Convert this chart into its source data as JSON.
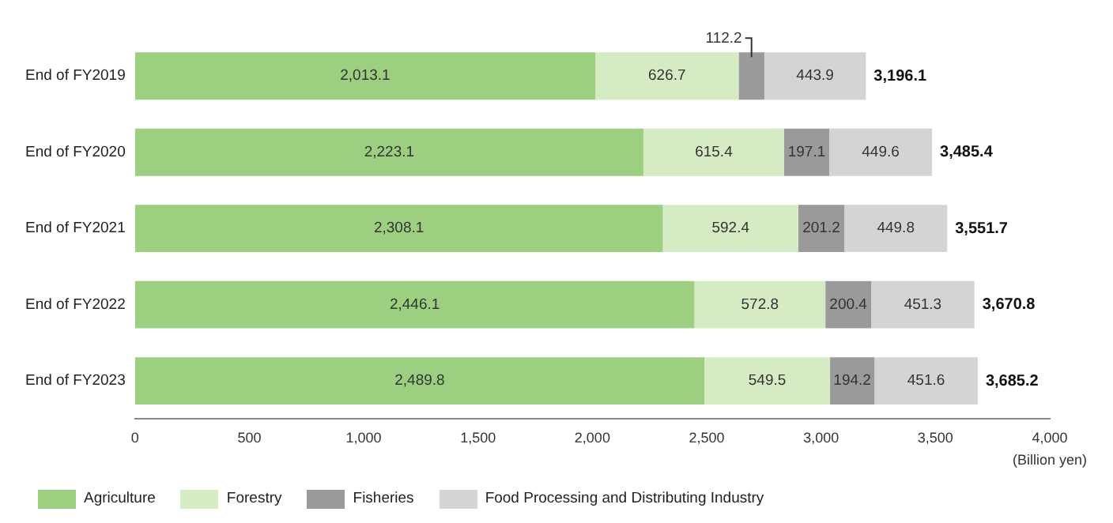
{
  "chart_data": {
    "type": "bar",
    "orientation": "horizontal",
    "stacked": true,
    "categories": [
      "End of FY2019",
      "End of FY2020",
      "End of FY2021",
      "End of FY2022",
      "End of FY2023"
    ],
    "series": [
      {
        "name": "Agriculture",
        "color": "#9dcf80",
        "values": [
          2013.1,
          2223.1,
          2308.1,
          2446.1,
          2489.8
        ],
        "value_labels": [
          "2,013.1",
          "2,223.1",
          "2,308.1",
          "2,446.1",
          "2,489.8"
        ]
      },
      {
        "name": "Forestry",
        "color": "#d5ebc4",
        "values": [
          626.7,
          615.4,
          592.4,
          572.8,
          549.5
        ],
        "value_labels": [
          "626.7",
          "615.4",
          "592.4",
          "572.8",
          "549.5"
        ]
      },
      {
        "name": "Fisheries",
        "color": "#9a9a9a",
        "values": [
          112.2,
          197.1,
          201.2,
          200.4,
          194.2
        ],
        "value_labels": [
          "112.2",
          "197.1",
          "201.2",
          "200.4",
          "194.2"
        ]
      },
      {
        "name": "Food Processing and Distributing Industry",
        "color": "#d4d4d4",
        "values": [
          443.9,
          449.6,
          449.8,
          451.3,
          451.6
        ],
        "value_labels": [
          "443.9",
          "449.6",
          "449.8",
          "451.3",
          "451.6"
        ]
      }
    ],
    "totals": [
      "3,196.1",
      "3,485.4",
      "3,551.7",
      "3,670.8",
      "3,685.2"
    ],
    "xlabel": "(Billion yen)",
    "xlim": [
      0,
      4000
    ],
    "xticks": [
      0,
      500,
      {
        "value": 1000,
        "label": "1,000"
      },
      {
        "value": 1500,
        "label": "1,500"
      },
      {
        "value": 2000,
        "label": "2,000"
      },
      {
        "value": 2500,
        "label": "2,500"
      },
      {
        "value": 3000,
        "label": "3,000"
      },
      {
        "value": 3500,
        "label": "3,500"
      },
      {
        "value": 4000,
        "label": "4,000"
      }
    ],
    "grid": false,
    "legend": "bottom left"
  }
}
